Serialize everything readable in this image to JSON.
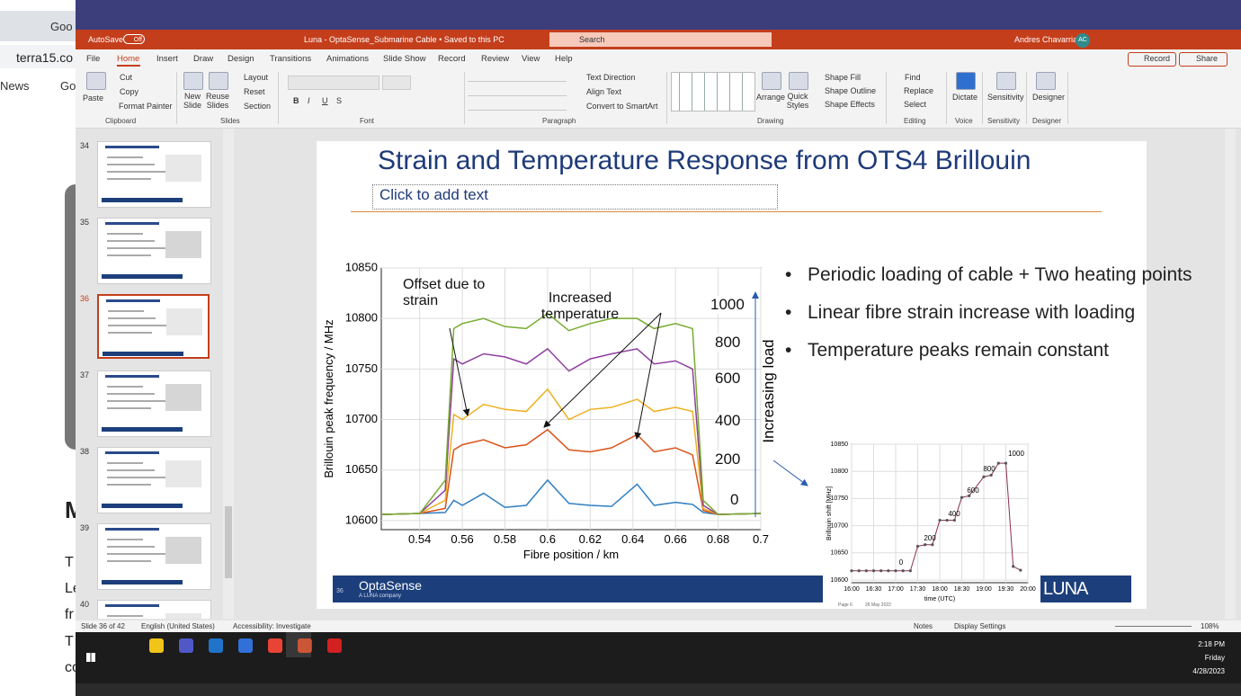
{
  "browser": {
    "tab": "Goo",
    "url": "terra15.co",
    "bookmarks": [
      "News",
      "Go"
    ],
    "page_fragments": [
      "M",
      "T",
      "Le",
      "fr",
      "T",
      "co"
    ]
  },
  "title_bar": {
    "autosave": "AutoSave",
    "autosave_state": "Off",
    "document": "Luna - OptaSense_Submarine Cable • Saved to this PC",
    "search": "Search",
    "user": "Andres Chavarria",
    "initials": "AC"
  },
  "ribbon_tabs": [
    "File",
    "Home",
    "Insert",
    "Draw",
    "Design",
    "Transitions",
    "Animations",
    "Slide Show",
    "Record",
    "Review",
    "View",
    "Help"
  ],
  "ribbon_actions": [
    "Record",
    "Share"
  ],
  "ribbon_commands": [
    "Paste",
    "Cut",
    "Copy",
    "Format Painter",
    "New Slide",
    "Reuse Slides",
    "Layout",
    "Reset",
    "Section",
    "Text Direction",
    "Align Text",
    "Convert to SmartArt",
    "Arrange",
    "Quick Styles",
    "Shape Fill",
    "Shape Outline",
    "Shape Effects",
    "Find",
    "Replace",
    "Select",
    "Dictate",
    "Sensitivity",
    "Designer"
  ],
  "ribbon_groups": [
    "Clipboard",
    "Slides",
    "Font",
    "Paragraph",
    "Drawing",
    "Editing",
    "Voice",
    "Sensitivity",
    "Designer"
  ],
  "font_buttons": [
    "B",
    "I",
    "U",
    "S"
  ],
  "thumbnails": [
    34,
    35,
    36,
    37,
    38,
    39,
    40
  ],
  "slide": {
    "title": "Strain and Temperature Response from OTS4 Brillouin",
    "placeholder": "Click to add text",
    "bullets": [
      "Periodic loading of cable + Two heating points",
      "Linear fibre strain increase with loading",
      "Temperature peaks remain constant"
    ],
    "number": 36,
    "brand": "OptaSense",
    "brand_tagline": "A LUNA company",
    "partner": "LUNA"
  },
  "chart_data": [
    {
      "type": "line",
      "xlabel": "Fibre position / km",
      "ylabel": "Brillouin peak frequency / MHz",
      "grid": true,
      "xlim": [
        0.522,
        0.7
      ],
      "ylim": [
        10591,
        10850
      ],
      "xticks": [
        0.54,
        0.56,
        0.58,
        0.6,
        0.62,
        0.64,
        0.66,
        0.68,
        0.7
      ],
      "yticks": [
        10600,
        10650,
        10700,
        10750,
        10800,
        10850
      ],
      "x": [
        0.522,
        0.54,
        0.552,
        0.556,
        0.56,
        0.57,
        0.58,
        0.59,
        0.6,
        0.61,
        0.62,
        0.63,
        0.642,
        0.65,
        0.66,
        0.668,
        0.673,
        0.68,
        0.7
      ],
      "series": [
        {
          "color": "#2f7fc1",
          "values": [
            10606,
            10607,
            10608,
            10620,
            10615,
            10627,
            10613,
            10615,
            10640,
            10617,
            10615,
            10614,
            10636,
            10615,
            10618,
            10616,
            10608,
            10606,
            10607
          ]
        },
        {
          "color": "#d95319",
          "values": [
            10606,
            10607,
            10612,
            10670,
            10675,
            10680,
            10672,
            10675,
            10690,
            10670,
            10668,
            10672,
            10685,
            10668,
            10672,
            10665,
            10610,
            10606,
            10607
          ]
        },
        {
          "color": "#edb120",
          "values": [
            10606,
            10607,
            10620,
            10705,
            10700,
            10715,
            10710,
            10708,
            10730,
            10700,
            10710,
            10712,
            10720,
            10708,
            10712,
            10708,
            10612,
            10606,
            10607
          ]
        },
        {
          "color": "#8e3fa0",
          "values": [
            10606,
            10607,
            10630,
            10760,
            10755,
            10765,
            10762,
            10755,
            10770,
            10748,
            10760,
            10765,
            10770,
            10755,
            10758,
            10750,
            10615,
            10606,
            10607
          ]
        },
        {
          "color": "#77ac30",
          "values": [
            10606,
            10607,
            10640,
            10790,
            10795,
            10800,
            10792,
            10790,
            10805,
            10788,
            10795,
            10800,
            10800,
            10790,
            10795,
            10790,
            10620,
            10606,
            10607
          ]
        }
      ],
      "annotations": [
        "Offset due to strain",
        "Increased temperature",
        "1000",
        "800",
        "600",
        "400",
        "200",
        "0",
        "Increasing load"
      ]
    },
    {
      "type": "line",
      "markers": true,
      "color": "#8b3048",
      "xlabel": "time (UTC)",
      "ylabel": "Brillouin shift [MHz]",
      "grid": true,
      "xlim": [
        "16:00",
        "20:00"
      ],
      "ylim": [
        10595,
        10850
      ],
      "xticks": [
        "16:00",
        "16:30",
        "17:00",
        "17:30",
        "18:00",
        "18:30",
        "19:00",
        "19:30",
        "20:00"
      ],
      "yticks": [
        10600,
        10650,
        10700,
        10750,
        10800,
        10850
      ],
      "x": [
        "16:00",
        "16:10",
        "16:20",
        "16:30",
        "16:40",
        "16:50",
        "17:00",
        "17:10",
        "17:20",
        "17:30",
        "17:40",
        "17:50",
        "18:00",
        "18:10",
        "18:20",
        "18:30",
        "18:40",
        "19:00",
        "19:10",
        "19:20",
        "19:30",
        "19:40",
        "19:50"
      ],
      "values": [
        10617,
        10617,
        10617,
        10617,
        10617,
        10617,
        10617,
        10617,
        10617,
        10662,
        10665,
        10665,
        10710,
        10710,
        10710,
        10752,
        10755,
        10790,
        10793,
        10815,
        10815,
        10625,
        10618
      ],
      "annotations": [
        "0",
        "200",
        "400",
        "600",
        "800",
        "1000"
      ],
      "notes": [
        "Page 6",
        "26 May 2022"
      ]
    }
  ],
  "status_bar": {
    "slide": "Slide 36 of 42",
    "language": "English (United States)",
    "accessibility": "Accessibility: Investigate",
    "notes": "Notes",
    "display": "Display Settings",
    "zoom": "108%"
  },
  "taskbar": {
    "time": "2:18 PM",
    "day": "Friday",
    "date": "4/28/2023"
  }
}
